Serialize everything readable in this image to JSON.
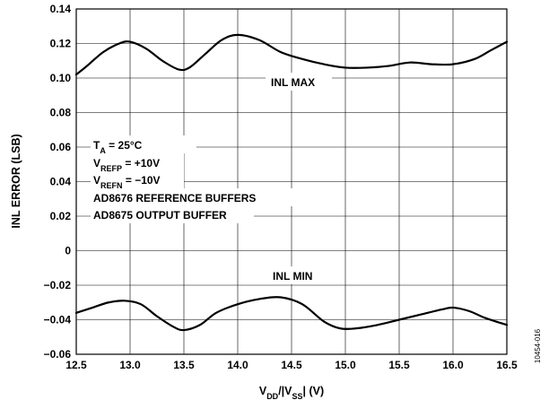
{
  "chart_data": {
    "type": "line",
    "title": "",
    "xlabel": {
      "main": "V",
      "sub1": "DD",
      "mid": "/|V",
      "sub2": "SS",
      "end": "| (V)"
    },
    "ylabel": "INL ERROR (LSB)",
    "xlim": [
      12.5,
      16.5
    ],
    "ylim": [
      -0.06,
      0.14
    ],
    "grid": true,
    "x_ticks": [
      "12.5",
      "13.0",
      "13.5",
      "14.0",
      "14.5",
      "15.0",
      "15.5",
      "16.0",
      "16.5"
    ],
    "y_ticks": [
      "0.14",
      "0.12",
      "0.10",
      "0.08",
      "0.06",
      "0.04",
      "0.02",
      "0",
      "−0.02",
      "−0.04",
      "−0.06"
    ],
    "series": [
      {
        "name": "INL MAX",
        "x": [
          12.5,
          12.6,
          12.75,
          12.9,
          13.0,
          13.15,
          13.3,
          13.45,
          13.55,
          13.7,
          13.85,
          14.0,
          14.2,
          14.4,
          14.6,
          14.8,
          15.0,
          15.2,
          15.4,
          15.6,
          15.8,
          16.0,
          16.2,
          16.35,
          16.5
        ],
        "values": [
          0.102,
          0.107,
          0.115,
          0.12,
          0.121,
          0.117,
          0.11,
          0.105,
          0.106,
          0.114,
          0.122,
          0.125,
          0.122,
          0.115,
          0.111,
          0.108,
          0.106,
          0.106,
          0.107,
          0.109,
          0.108,
          0.108,
          0.111,
          0.116,
          0.121
        ]
      },
      {
        "name": "INL MIN",
        "x": [
          12.5,
          12.65,
          12.8,
          12.95,
          13.1,
          13.25,
          13.4,
          13.5,
          13.65,
          13.8,
          14.0,
          14.2,
          14.4,
          14.6,
          14.8,
          14.95,
          15.1,
          15.3,
          15.5,
          15.7,
          15.9,
          16.0,
          16.15,
          16.3,
          16.5
        ],
        "values": [
          -0.036,
          -0.033,
          -0.03,
          -0.029,
          -0.031,
          -0.038,
          -0.044,
          -0.046,
          -0.043,
          -0.036,
          -0.031,
          -0.028,
          -0.027,
          -0.031,
          -0.041,
          -0.045,
          -0.045,
          -0.043,
          -0.04,
          -0.037,
          -0.034,
          -0.033,
          -0.035,
          -0.039,
          -0.043
        ]
      }
    ],
    "annotations": {
      "inl_max": "INL MAX",
      "inl_min": "INL MIN",
      "conditions": [
        {
          "main": "T",
          "sub": "A",
          "rest": " = 25°C"
        },
        {
          "main": "V",
          "sub": "REFP",
          "rest": " = +10V"
        },
        {
          "main": "V",
          "sub": "REFN",
          "rest": " = −10V"
        },
        {
          "main": "AD8676 REFERENCE BUFFERS",
          "sub": "",
          "rest": ""
        },
        {
          "main": "AD8675 OUTPUT BUFFER",
          "sub": "",
          "rest": ""
        }
      ]
    },
    "figure_id": "10454-016"
  }
}
